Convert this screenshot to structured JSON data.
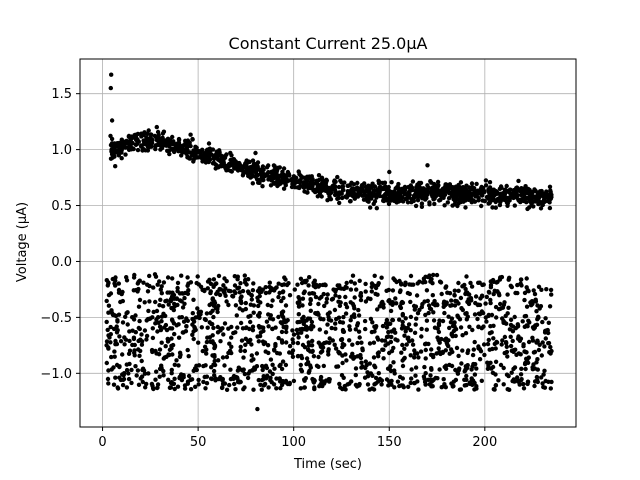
{
  "chart_data": {
    "type": "scatter",
    "title": "Constant Current 25.0μA",
    "xlabel": "Time (sec)",
    "ylabel": "Voltage (μA)",
    "xlim": [
      -11.8,
      247.7
    ],
    "ylim": [
      -1.48,
      1.81
    ],
    "x_ticks": [
      0,
      50,
      100,
      150,
      200
    ],
    "x_tick_labels": [
      "0",
      "50",
      "100",
      "150",
      "200"
    ],
    "y_ticks": [
      -1.0,
      -0.5,
      0.0,
      0.5,
      1.0,
      1.5
    ],
    "y_tick_labels": [
      "−1.0",
      "−0.5",
      "0.0",
      "0.5",
      "1.0",
      "1.5"
    ],
    "grid": true,
    "marker_color": "#000000",
    "series": [
      {
        "description_points": "upper band: decays from ~1.05 at t~5 to ~0.58 at t~235",
        "upper_trend": [
          [
            5,
            1.0
          ],
          [
            20,
            1.08
          ],
          [
            35,
            1.05
          ],
          [
            50,
            0.97
          ],
          [
            70,
            0.85
          ],
          [
            90,
            0.75
          ],
          [
            110,
            0.68
          ],
          [
            130,
            0.62
          ],
          [
            150,
            0.6
          ],
          [
            170,
            0.62
          ],
          [
            190,
            0.6
          ],
          [
            210,
            0.6
          ],
          [
            235,
            0.57
          ]
        ],
        "outliers": [
          [
            4.5,
            1.67
          ],
          [
            4.3,
            1.55
          ],
          [
            5,
            1.26
          ],
          [
            80,
            0.97
          ],
          [
            170,
            0.86
          ],
          [
            150,
            0.8
          ],
          [
            173,
            -0.12
          ],
          [
            81,
            -1.32
          ]
        ],
        "lower_band_range": [
          -1.15,
          -0.12
        ],
        "x_range": [
          2,
          235
        ]
      }
    ]
  }
}
